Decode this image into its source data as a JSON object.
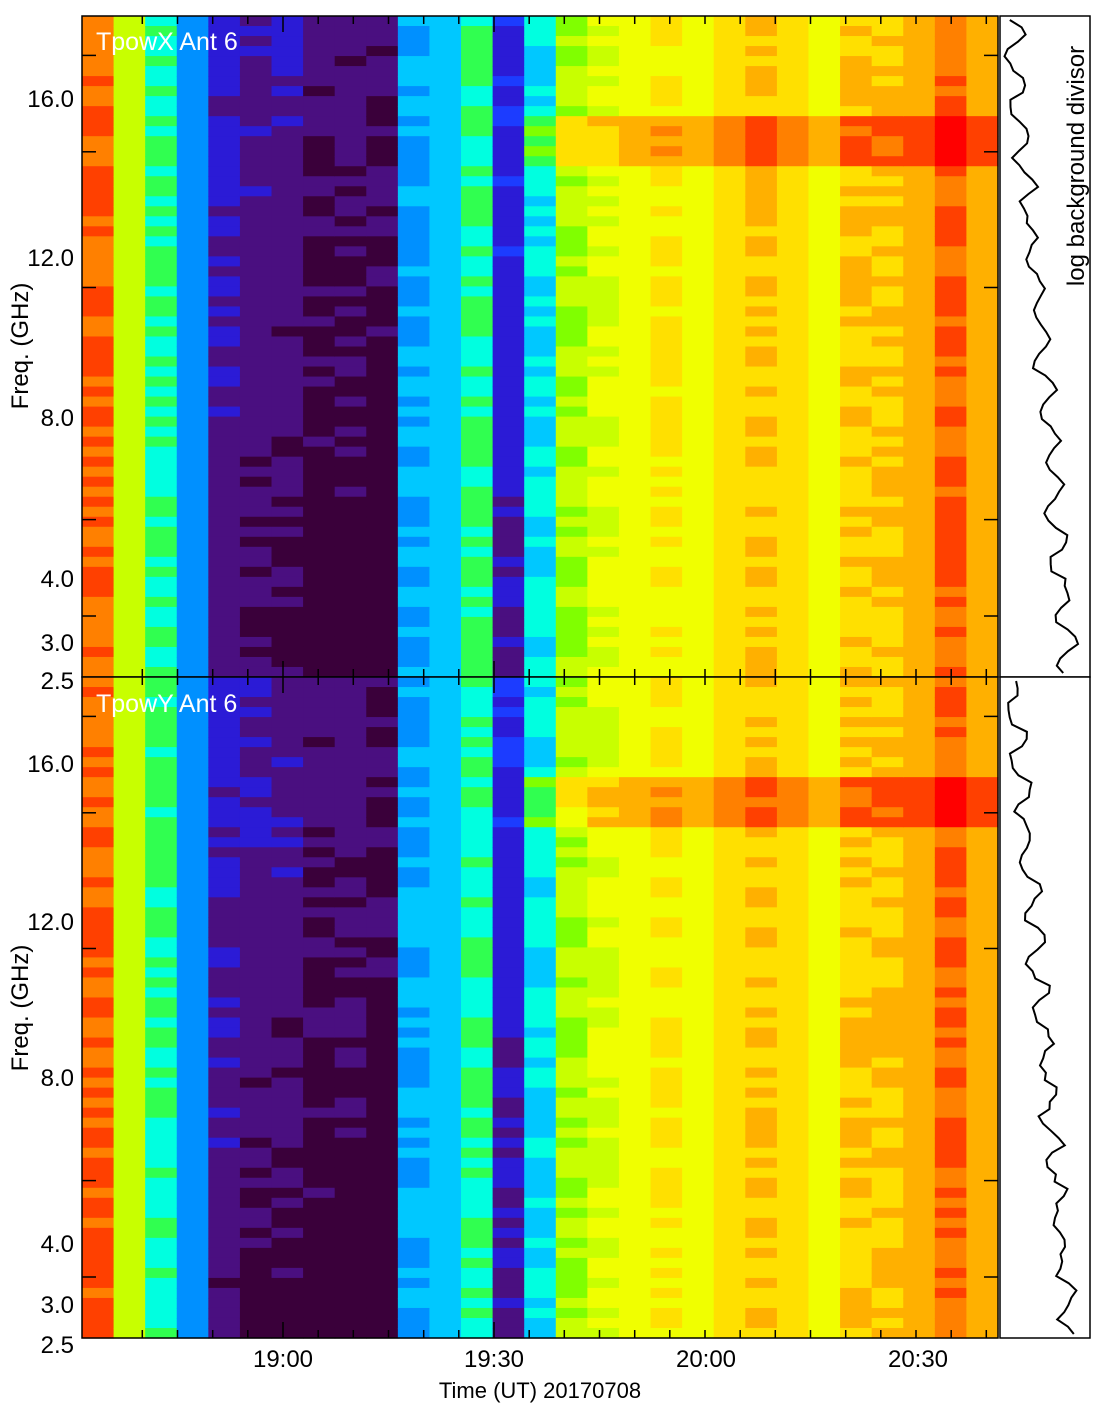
{
  "chart_data": [
    {
      "type": "heatmap",
      "title": "TpowX Ant 6",
      "xlabel": "Time (UT) 20170708",
      "ylabel": "Freq. (GHz)",
      "y_scale": "log",
      "ylim": [
        2.5,
        18.0
      ],
      "y_ticks": [
        "2.5",
        "3.0",
        "4.0",
        "8.0",
        "12.0",
        "16.0"
      ],
      "x_ticks": [
        "19:00",
        "19:30",
        "20:00",
        "20:30"
      ],
      "colormap": "rainbow",
      "side_panel_label": "log background divisor"
    },
    {
      "type": "heatmap",
      "title": "TpowY Ant 6",
      "xlabel": "Time (UT) 20170708",
      "ylabel": "Freq. (GHz)",
      "y_scale": "log",
      "ylim": [
        2.5,
        18.0
      ],
      "y_ticks": [
        "2.5",
        "3.0",
        "4.0",
        "8.0",
        "12.0",
        "16.0"
      ],
      "x_ticks": [
        "19:00",
        "19:30",
        "20:00",
        "20:30"
      ],
      "colormap": "rainbow"
    }
  ],
  "palette": [
    "#3a003a",
    "#4a0f80",
    "#2b1bd6",
    "#1c3cff",
    "#0090ff",
    "#00c8ff",
    "#00ffe0",
    "#30ff50",
    "#80ff00",
    "#c8ff00",
    "#f0ff00",
    "#ffe000",
    "#ffb000",
    "#ff8000",
    "#ff4000",
    "#ff0000"
  ],
  "columns": [
    13.5,
    9,
    6.5,
    4,
    2,
    1.5,
    1.5,
    1,
    1,
    0.8,
    4.5,
    5,
    6.5,
    2.5,
    5.5,
    8.5,
    9.5,
    10,
    10.5,
    10,
    11,
    11.5,
    11,
    10,
    11.5,
    11.5,
    12,
    13.5,
    12
  ]
}
